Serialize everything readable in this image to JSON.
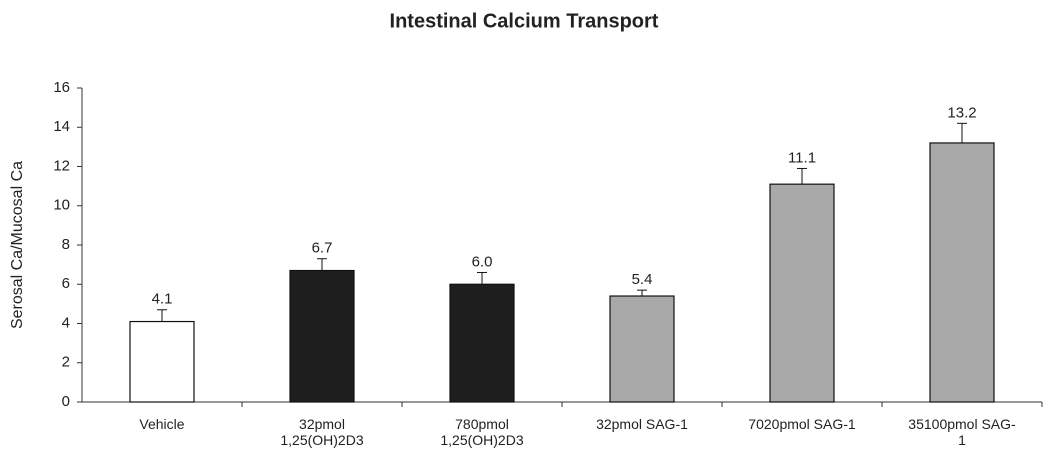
{
  "chart_data": {
    "type": "bar",
    "title": "Intestinal Calcium Transport",
    "ylabel": "Serosal Ca/Mucosal Ca",
    "categories": [
      "Vehicle",
      "32pmol 1,25(OH)2D3",
      "780pmol 1,25(OH)2D3",
      "32pmol SAG-1",
      "7020pmol SAG-1",
      "35100pmol SAG-1"
    ],
    "values": [
      4.1,
      6.7,
      6.0,
      5.4,
      11.1,
      13.2
    ],
    "value_labels": [
      "4.1",
      "6.7",
      "6.0",
      "5.4",
      "11.1",
      "13.2"
    ],
    "errors": [
      0.6,
      0.6,
      0.6,
      0.3,
      0.8,
      1.0
    ],
    "colors": [
      "#ffffff",
      "#1e1e1e",
      "#1e1e1e",
      "#a9a9a9",
      "#a9a9a9",
      "#a9a9a9"
    ],
    "ylim": [
      0,
      16
    ],
    "yticks": [
      0,
      2,
      4,
      6,
      8,
      10,
      12,
      14,
      16
    ],
    "grid": false
  }
}
